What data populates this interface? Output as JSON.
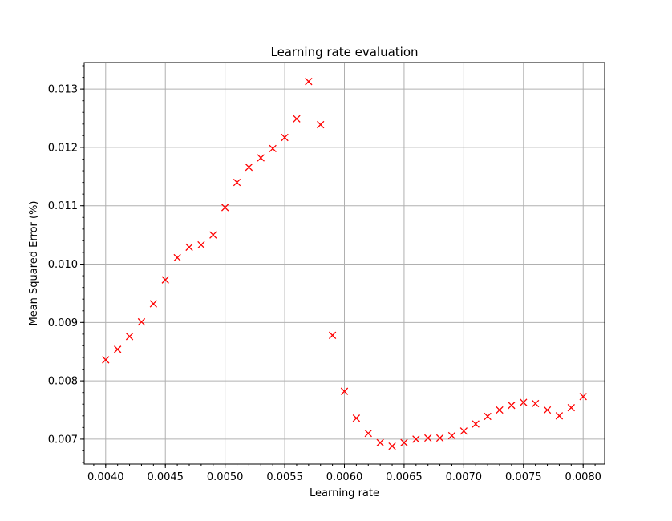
{
  "chart_data": {
    "type": "scatter",
    "title": "Learning rate evaluation",
    "xlabel": "Learning rate",
    "ylabel": "Mean Squared Error (%)",
    "xlim": [
      0.00382,
      0.00818
    ],
    "ylim": [
      0.006573,
      0.013455
    ],
    "xticks": [
      0.004,
      0.0045,
      0.005,
      0.0055,
      0.006,
      0.0065,
      0.007,
      0.0075,
      0.008
    ],
    "xtick_labels": [
      "0.0040",
      "0.0045",
      "0.0050",
      "0.0055",
      "0.0060",
      "0.0065",
      "0.0070",
      "0.0075",
      "0.0080"
    ],
    "yticks": [
      0.007,
      0.008,
      0.009,
      0.01,
      0.011,
      0.012,
      0.013
    ],
    "ytick_labels": [
      "0.007",
      "0.008",
      "0.009",
      "0.010",
      "0.011",
      "0.012",
      "0.013"
    ],
    "grid": true,
    "marker": "x",
    "color": "#ff0000",
    "series": [
      {
        "points": [
          [
            0.004,
            0.00836
          ],
          [
            0.0041,
            0.00854
          ],
          [
            0.0042,
            0.00876
          ],
          [
            0.0043,
            0.00901
          ],
          [
            0.0044,
            0.00932
          ],
          [
            0.0045,
            0.00973
          ],
          [
            0.0046,
            0.01011
          ],
          [
            0.0047,
            0.01029
          ],
          [
            0.0048,
            0.01033
          ],
          [
            0.0049,
            0.0105
          ],
          [
            0.005,
            0.01097
          ],
          [
            0.0051,
            0.0114
          ],
          [
            0.0052,
            0.01166
          ],
          [
            0.0053,
            0.01182
          ],
          [
            0.0054,
            0.01198
          ],
          [
            0.0055,
            0.01217
          ],
          [
            0.0056,
            0.01249
          ],
          [
            0.0057,
            0.01313
          ],
          [
            0.0058,
            0.01239
          ],
          [
            0.0059,
            0.00878
          ],
          [
            0.006,
            0.00782
          ],
          [
            0.0061,
            0.00736
          ],
          [
            0.0062,
            0.0071
          ],
          [
            0.0063,
            0.00694
          ],
          [
            0.0064,
            0.00688
          ],
          [
            0.0065,
            0.00694
          ],
          [
            0.0066,
            0.007
          ],
          [
            0.0067,
            0.00702
          ],
          [
            0.0068,
            0.00702
          ],
          [
            0.0069,
            0.00706
          ],
          [
            0.007,
            0.00714
          ],
          [
            0.0071,
            0.00726
          ],
          [
            0.0072,
            0.00739
          ],
          [
            0.0073,
            0.0075
          ],
          [
            0.0074,
            0.00758
          ],
          [
            0.0075,
            0.00763
          ],
          [
            0.0076,
            0.00761
          ],
          [
            0.0077,
            0.0075
          ],
          [
            0.0078,
            0.0074
          ],
          [
            0.0079,
            0.00754
          ],
          [
            0.008,
            0.00773
          ]
        ]
      }
    ]
  }
}
